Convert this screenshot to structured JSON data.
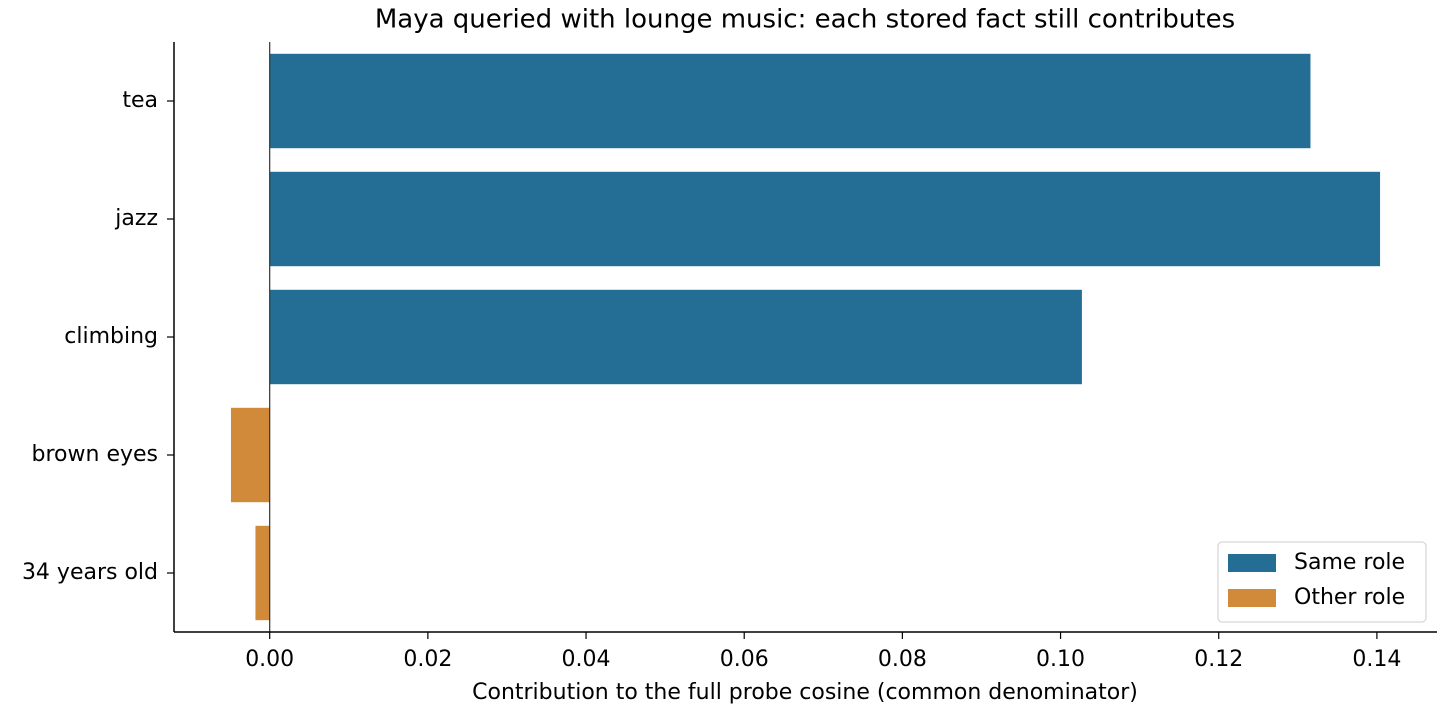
{
  "chart_data": {
    "type": "hbar",
    "title": "Maya queried with lounge music: each stored fact still contributes",
    "x_label": "Contribution to the full probe cosine (common denominator)",
    "categories": [
      "tea",
      "jazz",
      "climbing",
      "brown eyes",
      "34 years old"
    ],
    "series": [
      {
        "name": "Same role",
        "color": "#246d94",
        "values": [
          0.1316,
          0.1404,
          0.1027,
          null,
          null
        ]
      },
      {
        "name": "Other role",
        "color": "#d08a3a",
        "values": [
          null,
          null,
          null,
          -0.0049,
          -0.0018
        ]
      }
    ],
    "xlim": [
      -0.0121,
      0.1476
    ],
    "xticks": [
      {
        "value": 0,
        "label": "0.00"
      },
      0.02,
      0.04,
      0.06,
      0.08,
      {
        "value": 0.1,
        "label": "0.10"
      },
      0.12,
      0.14
    ],
    "legend": "lower right"
  }
}
